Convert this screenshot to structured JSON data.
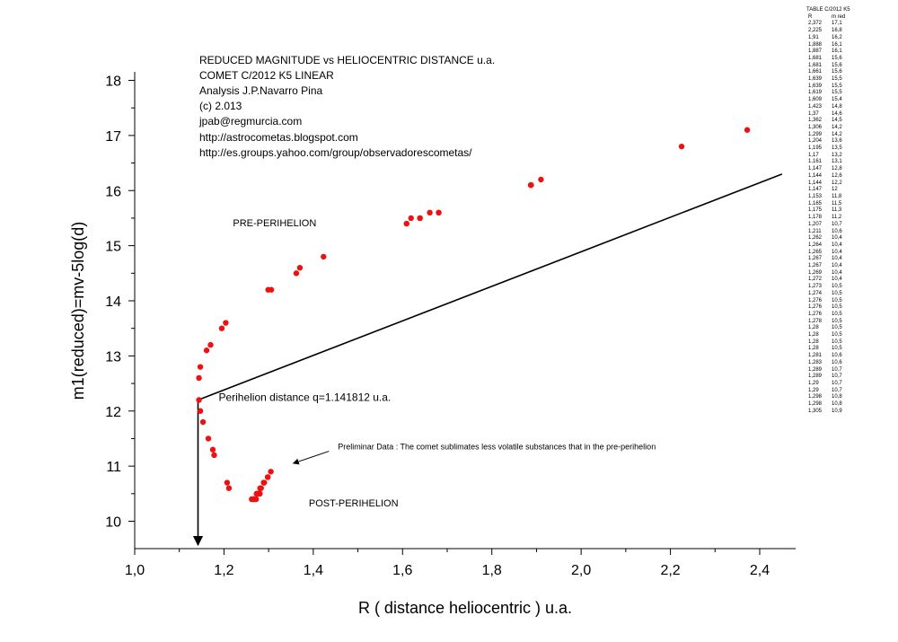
{
  "chart_data": {
    "type": "scatter",
    "title_lines": [
      "REDUCED MAGNITUDE vs HELIOCENTRIC DISTANCE u.a.",
      "COMET C/2012 K5 LINEAR",
      "Analysis J.P.Navarro Pina",
      "(c) 2.013",
      "jpab@regmurcia.com",
      "http://astrocometas.blogspot.com",
      "http://es.groups.yahoo.com/group/observadorescometas/"
    ],
    "xlabel": "R  ( distance heliocentric ) u.a.",
    "ylabel": "m1(reduced)=mv-5log(d)",
    "xlim": [
      1.0,
      2.45
    ],
    "ylim": [
      9.5,
      18.2
    ],
    "x_ticks": [
      1.0,
      1.2,
      1.4,
      1.6,
      1.8,
      2.0,
      2.2,
      2.4
    ],
    "x_tick_labels": [
      "1,0",
      "1,2",
      "1,4",
      "1,6",
      "1,8",
      "2,0",
      "2,2",
      "2,4"
    ],
    "y_ticks": [
      10,
      11,
      12,
      13,
      14,
      15,
      16,
      17,
      18
    ],
    "y_tick_labels": [
      "10",
      "11",
      "12",
      "13",
      "14",
      "15",
      "16",
      "17",
      "18"
    ],
    "marker_color": "#ee1111",
    "line_color": "#000000",
    "series": [
      {
        "name": "Pre-perihelion",
        "points": [
          [
            2.372,
            17.1
          ],
          [
            2.225,
            16.8
          ],
          [
            1.91,
            16.2
          ],
          [
            1.888,
            16.1
          ],
          [
            1.887,
            16.1
          ],
          [
            1.681,
            15.6
          ],
          [
            1.681,
            15.6
          ],
          [
            1.661,
            15.6
          ],
          [
            1.639,
            15.5
          ],
          [
            1.639,
            15.5
          ],
          [
            1.619,
            15.5
          ],
          [
            1.609,
            15.4
          ],
          [
            1.423,
            14.8
          ],
          [
            1.37,
            14.6
          ],
          [
            1.362,
            14.5
          ],
          [
            1.306,
            14.2
          ],
          [
            1.299,
            14.2
          ],
          [
            1.204,
            13.6
          ],
          [
            1.195,
            13.5
          ],
          [
            1.17,
            13.2
          ],
          [
            1.161,
            13.1
          ],
          [
            1.147,
            12.8
          ],
          [
            1.144,
            12.6
          ],
          [
            1.144,
            12.2
          ]
        ]
      },
      {
        "name": "Post-perihelion",
        "points": [
          [
            1.147,
            12.0
          ],
          [
            1.153,
            11.8
          ],
          [
            1.165,
            11.5
          ],
          [
            1.175,
            11.3
          ],
          [
            1.178,
            11.2
          ],
          [
            1.207,
            10.7
          ],
          [
            1.211,
            10.6
          ],
          [
            1.262,
            10.4
          ],
          [
            1.264,
            10.4
          ],
          [
            1.265,
            10.4
          ],
          [
            1.267,
            10.4
          ],
          [
            1.267,
            10.4
          ],
          [
            1.269,
            10.4
          ],
          [
            1.272,
            10.4
          ],
          [
            1.273,
            10.5
          ],
          [
            1.274,
            10.5
          ],
          [
            1.276,
            10.5
          ],
          [
            1.276,
            10.5
          ],
          [
            1.276,
            10.5
          ],
          [
            1.278,
            10.5
          ],
          [
            1.28,
            10.5
          ],
          [
            1.28,
            10.5
          ],
          [
            1.28,
            10.5
          ],
          [
            1.28,
            10.5
          ],
          [
            1.281,
            10.6
          ],
          [
            1.283,
            10.6
          ],
          [
            1.289,
            10.7
          ],
          [
            1.289,
            10.7
          ],
          [
            1.29,
            10.7
          ],
          [
            1.29,
            10.7
          ],
          [
            1.298,
            10.8
          ],
          [
            1.298,
            10.8
          ],
          [
            1.305,
            10.9
          ]
        ]
      }
    ],
    "reference_lines": [
      {
        "name": "trend-line",
        "from": [
          1.141812,
          12.2
        ],
        "to": [
          2.45,
          16.3
        ]
      },
      {
        "name": "perihelion-drop-line",
        "from": [
          1.141812,
          12.2
        ],
        "to": [
          1.141812,
          9.5
        ],
        "arrow": true
      }
    ],
    "annotations": [
      {
        "name": "pre-perihelion-label",
        "text": "PRE-PERIHELION",
        "at": [
          1.22,
          15.35
        ]
      },
      {
        "name": "perihelion-distance-label",
        "text": "Perihelion distance q=1.141812 u.a.",
        "at": [
          1.188,
          12.18
        ]
      },
      {
        "name": "preliminary-note",
        "text": "Preliminar Data : The comet sublimates less volatile substances that in the pre-perihelion",
        "at": [
          1.455,
          11.3
        ]
      },
      {
        "name": "post-perihelion-label",
        "text": "POST-PERIHELION",
        "at": [
          1.39,
          10.27
        ]
      }
    ],
    "note_arrow": {
      "from": [
        1.435,
        11.27
      ],
      "to": [
        1.355,
        11.05
      ]
    }
  },
  "table": {
    "title": "TABLE C/2012 K5",
    "headers": [
      "R",
      "m red"
    ],
    "rows": [
      [
        "2,372",
        "17,1"
      ],
      [
        "2,225",
        "16,8"
      ],
      [
        "1,91",
        "16,2"
      ],
      [
        "1,888",
        "16,1"
      ],
      [
        "1,887",
        "16,1"
      ],
      [
        "1,681",
        "15,6"
      ],
      [
        "1,681",
        "15,6"
      ],
      [
        "1,661",
        "15,6"
      ],
      [
        "1,639",
        "15,5"
      ],
      [
        "1,639",
        "15,5"
      ],
      [
        "1,619",
        "15,5"
      ],
      [
        "1,609",
        "15,4"
      ],
      [
        "1,423",
        "14,8"
      ],
      [
        "1,37",
        "14,6"
      ],
      [
        "1,362",
        "14,5"
      ],
      [
        "1,306",
        "14,2"
      ],
      [
        "1,299",
        "14,2"
      ],
      [
        "1,204",
        "13,6"
      ],
      [
        "1,195",
        "13,5"
      ],
      [
        "1,17",
        "13,2"
      ],
      [
        "1,161",
        "13,1"
      ],
      [
        "1,147",
        "12,8"
      ],
      [
        "1,144",
        "12,6"
      ],
      [
        "1,144",
        "12,2"
      ],
      [
        "1,147",
        "12"
      ],
      [
        "1,153",
        "11,8"
      ],
      [
        "1,165",
        "11,5"
      ],
      [
        "1,175",
        "11,3"
      ],
      [
        "1,178",
        "11,2"
      ],
      [
        "1,207",
        "10,7"
      ],
      [
        "1,211",
        "10,6"
      ],
      [
        "1,262",
        "10,4"
      ],
      [
        "1,264",
        "10,4"
      ],
      [
        "1,265",
        "10,4"
      ],
      [
        "1,267",
        "10,4"
      ],
      [
        "1,267",
        "10,4"
      ],
      [
        "1,269",
        "10,4"
      ],
      [
        "1,272",
        "10,4"
      ],
      [
        "1,273",
        "10,5"
      ],
      [
        "1,274",
        "10,5"
      ],
      [
        "1,276",
        "10,5"
      ],
      [
        "1,276",
        "10,5"
      ],
      [
        "1,276",
        "10,5"
      ],
      [
        "1,278",
        "10,5"
      ],
      [
        "1,28",
        "10,5"
      ],
      [
        "1,28",
        "10,5"
      ],
      [
        "1,28",
        "10,5"
      ],
      [
        "1,28",
        "10,5"
      ],
      [
        "1,281",
        "10,6"
      ],
      [
        "1,283",
        "10,6"
      ],
      [
        "1,289",
        "10,7"
      ],
      [
        "1,289",
        "10,7"
      ],
      [
        "1,29",
        "10,7"
      ],
      [
        "1,29",
        "10,7"
      ],
      [
        "1,298",
        "10,8"
      ],
      [
        "1,298",
        "10,8"
      ],
      [
        "1,305",
        "10,9"
      ]
    ]
  }
}
